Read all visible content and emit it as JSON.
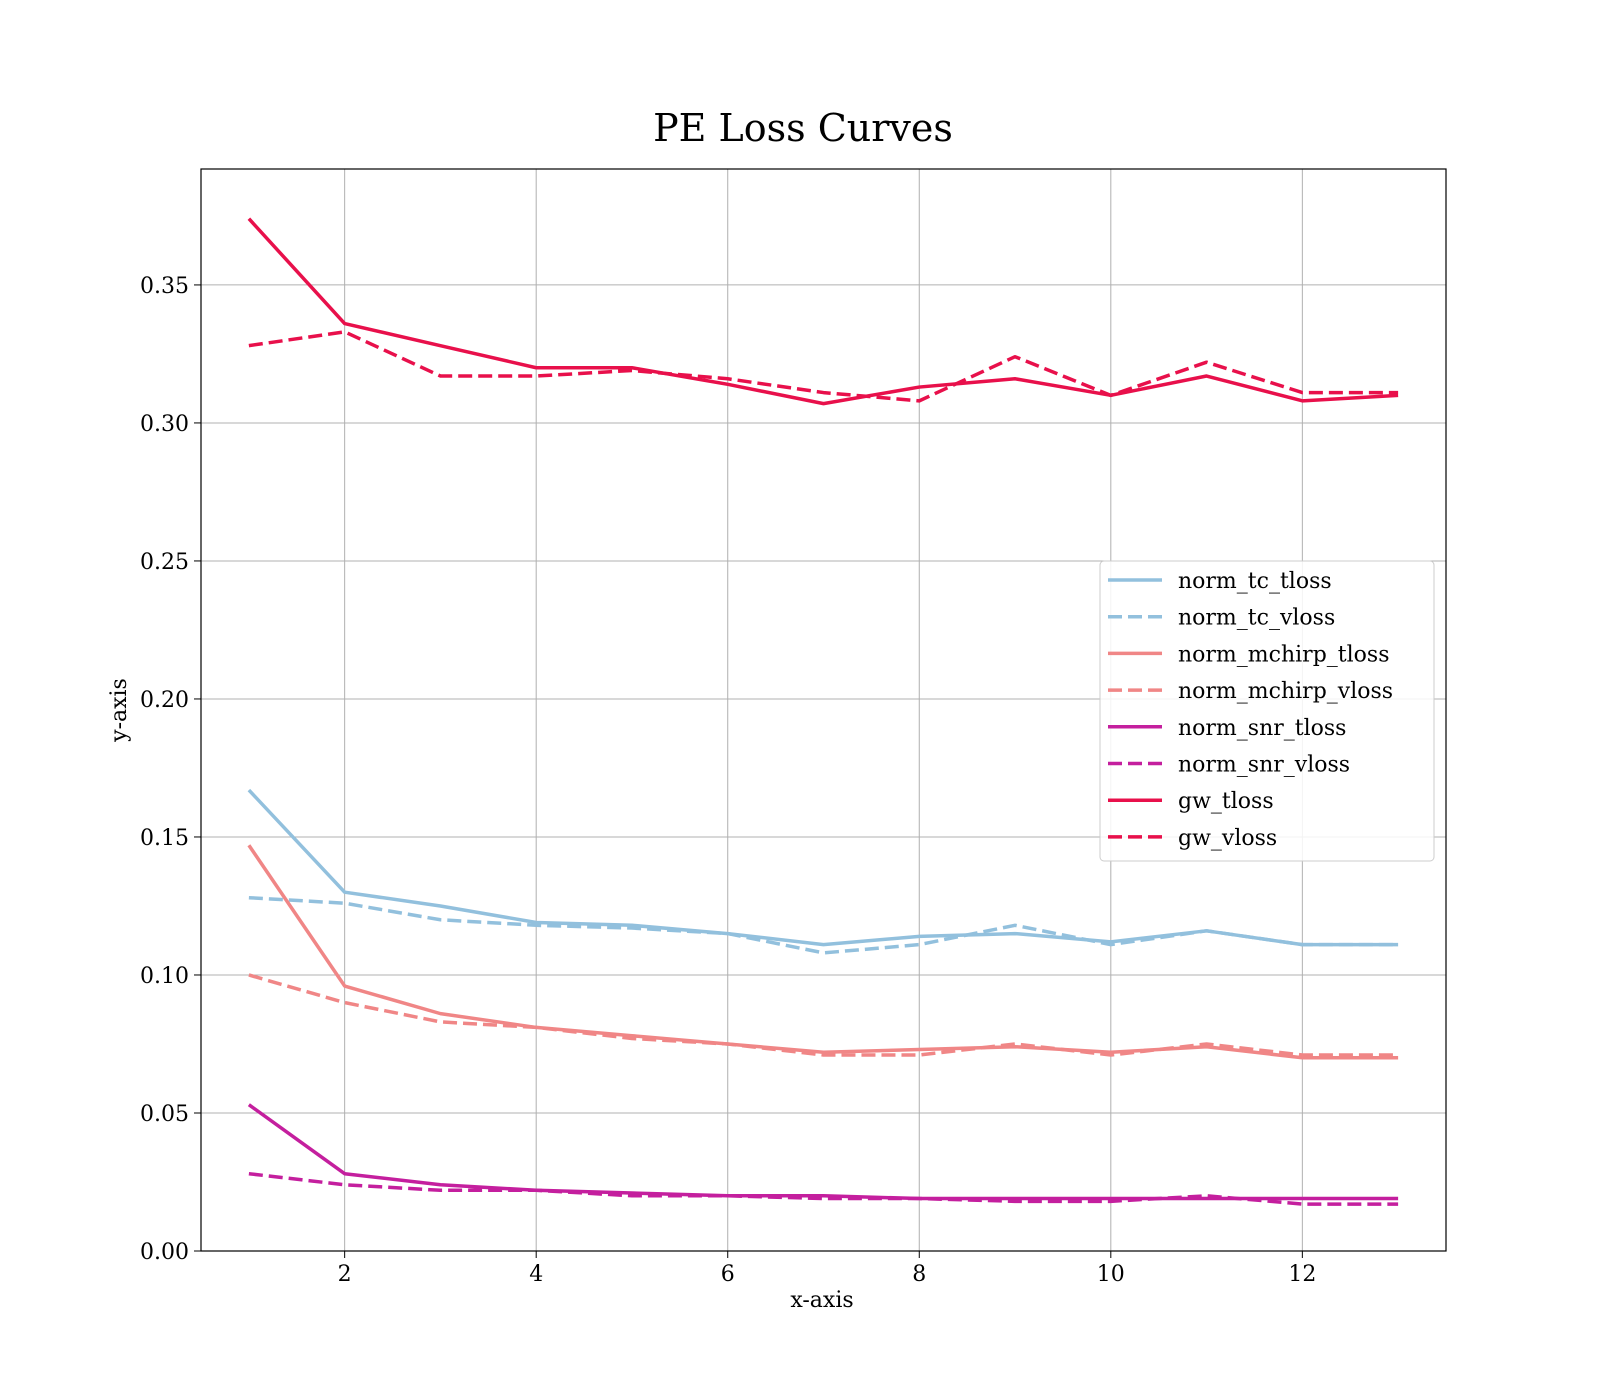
{
  "chart_data": {
    "type": "line",
    "title": "PE Loss Curves",
    "xlabel": "x-axis",
    "ylabel": "y-axis",
    "xlim": [
      0.5,
      13.5
    ],
    "ylim": [
      0.0,
      0.392
    ],
    "x_ticks": [
      2,
      4,
      6,
      8,
      10,
      12
    ],
    "y_ticks": [
      0.0,
      0.05,
      0.1,
      0.15,
      0.2,
      0.25,
      0.3,
      0.35
    ],
    "grid": true,
    "legend_position": "center-right",
    "x": [
      1,
      2,
      3,
      4,
      5,
      6,
      7,
      8,
      9,
      10,
      11,
      12,
      13
    ],
    "series": [
      {
        "name": "norm_tc_tloss",
        "color": "#92c0dd",
        "style": "solid",
        "values": [
          0.167,
          0.13,
          0.125,
          0.119,
          0.118,
          0.115,
          0.111,
          0.114,
          0.115,
          0.112,
          0.116,
          0.111,
          0.111
        ]
      },
      {
        "name": "norm_tc_vloss",
        "color": "#92c0dd",
        "style": "dashed",
        "values": [
          0.128,
          0.126,
          0.12,
          0.118,
          0.117,
          0.115,
          0.108,
          0.111,
          0.118,
          0.111,
          0.116,
          0.111,
          0.111
        ]
      },
      {
        "name": "norm_mchirp_tloss",
        "color": "#f08686",
        "style": "solid",
        "values": [
          0.147,
          0.096,
          0.086,
          0.081,
          0.078,
          0.075,
          0.072,
          0.073,
          0.074,
          0.072,
          0.074,
          0.07,
          0.07
        ]
      },
      {
        "name": "norm_mchirp_vloss",
        "color": "#f08686",
        "style": "dashed",
        "values": [
          0.1,
          0.09,
          0.083,
          0.081,
          0.077,
          0.075,
          0.071,
          0.071,
          0.075,
          0.071,
          0.075,
          0.071,
          0.071
        ]
      },
      {
        "name": "norm_snr_tloss",
        "color": "#c41f9e",
        "style": "solid",
        "values": [
          0.053,
          0.028,
          0.024,
          0.022,
          0.021,
          0.02,
          0.02,
          0.019,
          0.019,
          0.019,
          0.019,
          0.019,
          0.019
        ]
      },
      {
        "name": "norm_snr_vloss",
        "color": "#c41f9e",
        "style": "dashed",
        "values": [
          0.028,
          0.024,
          0.022,
          0.022,
          0.02,
          0.02,
          0.019,
          0.019,
          0.018,
          0.018,
          0.02,
          0.017,
          0.017
        ]
      },
      {
        "name": "gw_tloss",
        "color": "#e8104b",
        "style": "solid",
        "values": [
          0.374,
          0.336,
          0.328,
          0.32,
          0.32,
          0.314,
          0.307,
          0.313,
          0.316,
          0.31,
          0.317,
          0.308,
          0.31
        ]
      },
      {
        "name": "gw_vloss",
        "color": "#e8104b",
        "style": "dashed",
        "values": [
          0.328,
          0.333,
          0.317,
          0.317,
          0.319,
          0.316,
          0.311,
          0.308,
          0.324,
          0.31,
          0.322,
          0.311,
          0.311
        ]
      }
    ]
  }
}
